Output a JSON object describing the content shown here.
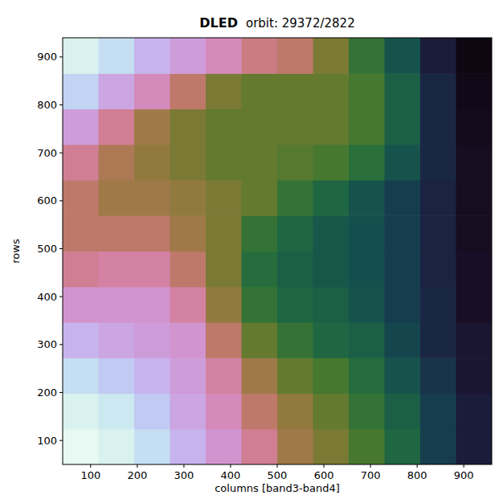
{
  "chart_data": {
    "type": "heatmap",
    "title": "DLED",
    "subtitle": "orbit: 29372/2822",
    "x_label": "columns [band3-band4]",
    "y_label": "rows",
    "xlim": [
      40,
      960
    ],
    "ylim": [
      50,
      940
    ],
    "xticks": [
      100,
      200,
      300,
      400,
      500,
      600,
      700,
      800,
      900
    ],
    "yticks": [
      100,
      200,
      300,
      400,
      500,
      600,
      700,
      800,
      900
    ],
    "zlim": [
      0,
      1
    ],
    "cells": [
      [
        0.95,
        0.92,
        0.85,
        0.75,
        0.68,
        0.6,
        0.5,
        0.45,
        0.38,
        0.3,
        0.2,
        0.12
      ],
      [
        0.92,
        0.88,
        0.8,
        0.72,
        0.65,
        0.55,
        0.48,
        0.42,
        0.35,
        0.28,
        0.2,
        0.12
      ],
      [
        0.85,
        0.8,
        0.75,
        0.7,
        0.62,
        0.5,
        0.42,
        0.38,
        0.32,
        0.25,
        0.18,
        0.1
      ],
      [
        0.75,
        0.72,
        0.7,
        0.68,
        0.55,
        0.42,
        0.35,
        0.3,
        0.28,
        0.22,
        0.15,
        0.1
      ],
      [
        0.68,
        0.68,
        0.68,
        0.62,
        0.48,
        0.35,
        0.3,
        0.28,
        0.25,
        0.2,
        0.15,
        0.08
      ],
      [
        0.6,
        0.62,
        0.62,
        0.55,
        0.45,
        0.32,
        0.28,
        0.26,
        0.24,
        0.2,
        0.14,
        0.08
      ],
      [
        0.55,
        0.55,
        0.55,
        0.5,
        0.45,
        0.35,
        0.3,
        0.26,
        0.24,
        0.2,
        0.14,
        0.07
      ],
      [
        0.55,
        0.5,
        0.5,
        0.48,
        0.45,
        0.42,
        0.35,
        0.3,
        0.25,
        0.2,
        0.14,
        0.07
      ],
      [
        0.6,
        0.52,
        0.48,
        0.45,
        0.42,
        0.42,
        0.4,
        0.38,
        0.33,
        0.25,
        0.15,
        0.07
      ],
      [
        0.7,
        0.6,
        0.5,
        0.45,
        0.42,
        0.42,
        0.42,
        0.42,
        0.38,
        0.28,
        0.15,
        0.06
      ],
      [
        0.82,
        0.72,
        0.65,
        0.55,
        0.45,
        0.42,
        0.42,
        0.42,
        0.38,
        0.28,
        0.15,
        0.05
      ],
      [
        0.92,
        0.85,
        0.75,
        0.7,
        0.65,
        0.58,
        0.55,
        0.45,
        0.35,
        0.25,
        0.12,
        0.04
      ]
    ]
  }
}
